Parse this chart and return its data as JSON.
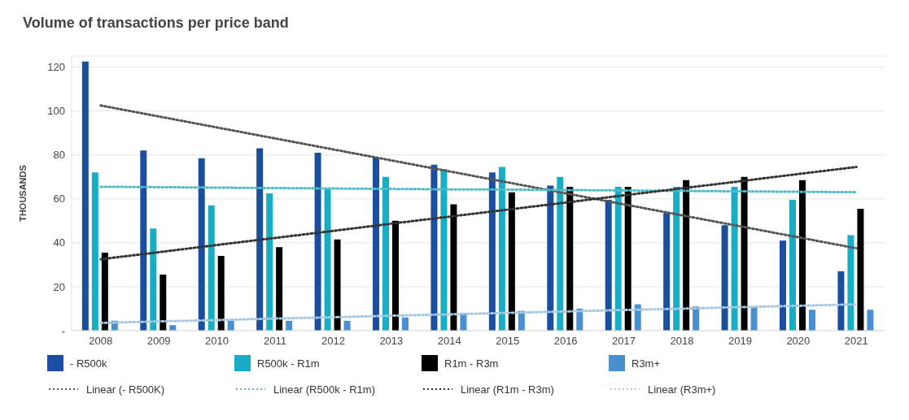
{
  "chart_data": {
    "type": "bar",
    "title": "Volume of transactions per price band",
    "ylabel": "THOUSANDS",
    "categories": [
      "2008",
      "2009",
      "2010",
      "2011",
      "2012",
      "2013",
      "2014",
      "2015",
      "2016",
      "2017",
      "2018",
      "2019",
      "2020",
      "2021"
    ],
    "series": [
      {
        "name": "- R500k",
        "color": "#1a4fa0",
        "values": [
          122.5,
          82,
          78.5,
          83,
          81,
          79,
          75.5,
          72,
          66,
          59.5,
          53.5,
          48,
          41,
          27
        ]
      },
      {
        "name": "R500k - R1m",
        "color": "#17aec5",
        "values": [
          72,
          46.5,
          57,
          62.5,
          64.5,
          70,
          73.5,
          74.5,
          70,
          65.5,
          65.5,
          65.5,
          59.5,
          43.5
        ]
      },
      {
        "name": "R1m - R3m",
        "color": "#000000",
        "values": [
          35.5,
          25.5,
          34,
          38,
          41.5,
          50,
          57.5,
          63,
          65.5,
          65.5,
          68.5,
          70,
          68.5,
          55.5
        ]
      },
      {
        "name": "R3m+",
        "color": "#4a8fcf",
        "values": [
          4.5,
          2.5,
          4.5,
          4.5,
          4.5,
          6,
          8,
          9,
          10,
          12,
          11,
          11,
          9.5,
          9.5
        ]
      },
      {
        "name": "Linear (- R500K)",
        "type": "line",
        "line_style": "dotted",
        "color": "#555555",
        "values": [
          102.5,
          97.5,
          92.5,
          87.5,
          82.5,
          77.5,
          72.5,
          67.5,
          62.5,
          57.5,
          52.5,
          47.5,
          42.5,
          37.5
        ]
      },
      {
        "name": "Linear (R500k - R1m)",
        "type": "line",
        "line_style": "dotted",
        "color": "#4fbcc8",
        "values": [
          65.5,
          65.3,
          65.1,
          64.9,
          64.7,
          64.5,
          64.3,
          64.2,
          64,
          63.8,
          63.6,
          63.4,
          63.2,
          63
        ]
      },
      {
        "name": "Linear (R1m - R3m)",
        "type": "line",
        "line_style": "dotted",
        "color": "#333333",
        "values": [
          32.5,
          35.7,
          39,
          42.2,
          45.4,
          48.7,
          51.9,
          55.1,
          58.3,
          61.6,
          64.8,
          68,
          71.3,
          74.5
        ]
      },
      {
        "name": "Linear (R3m+)",
        "type": "line",
        "line_style": "dotted",
        "color": "#a6c8e0",
        "values": [
          3.5,
          4.2,
          4.8,
          5.5,
          6.1,
          6.8,
          7.4,
          8.1,
          8.7,
          9.4,
          10,
          10.7,
          11.3,
          12
        ]
      }
    ],
    "ylim": [
      0,
      125
    ],
    "yticks": [
      {
        "value": 0,
        "label": "-"
      },
      20,
      40,
      60,
      80,
      100,
      120
    ],
    "grid": "y",
    "legend": "bottom",
    "marker": "none"
  }
}
